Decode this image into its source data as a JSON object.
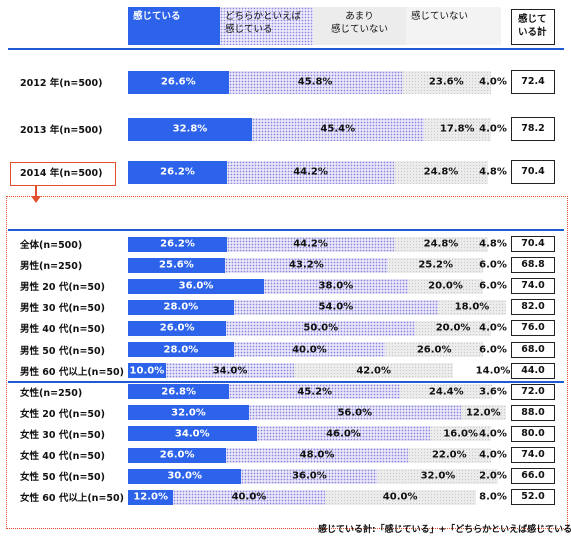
{
  "legend": {
    "l1": "感じている",
    "l2a": "どちらかといえば",
    "l2b": "感じている",
    "l3a": "あまり",
    "l3b": "感じていない",
    "l4": "感じていない",
    "l5a": "感じて",
    "l5b": "いる計"
  },
  "footnote": "感じている計:「感じている」+「どちらかといえば感じている」",
  "chart_data": {
    "type": "bar",
    "orientation": "horizontal-stacked-100",
    "series": [
      {
        "name": "感じている",
        "color": "#2d63ea"
      },
      {
        "name": "どちらかといえば感じている",
        "color": "#8a87de"
      },
      {
        "name": "あまり感じていない",
        "color": "#c9c9c9"
      },
      {
        "name": "感じていない",
        "color": "#ffffff"
      }
    ],
    "summary_column": "感じている計",
    "rows": [
      {
        "label": "2012 年(n=500)",
        "values": [
          26.6,
          45.8,
          23.6,
          4.0
        ],
        "labels": [
          "26.6%",
          "45.8%",
          "23.6%",
          "4.0%"
        ],
        "total": "72.4",
        "group": "year"
      },
      {
        "label": "2013 年(n=500)",
        "values": [
          32.8,
          45.4,
          17.8,
          4.0
        ],
        "labels": [
          "32.8%",
          "45.4%",
          "17.8%",
          "4.0%"
        ],
        "total": "78.2",
        "group": "year"
      },
      {
        "label": "2014 年(n=500)",
        "values": [
          26.2,
          44.2,
          24.8,
          4.8
        ],
        "labels": [
          "26.2%",
          "44.2%",
          "24.8%",
          "4.8%"
        ],
        "total": "70.4",
        "group": "year"
      },
      {
        "label": "全体(n=500)",
        "values": [
          26.2,
          44.2,
          24.8,
          4.8
        ],
        "labels": [
          "26.2%",
          "44.2%",
          "24.8%",
          "4.8%"
        ],
        "total": "70.4",
        "group": "detail"
      },
      {
        "label": "男性(n=250)",
        "values": [
          25.6,
          43.2,
          25.2,
          6.0
        ],
        "labels": [
          "25.6%",
          "43.2%",
          "25.2%",
          "6.0%"
        ],
        "total": "68.8",
        "group": "detail"
      },
      {
        "label": "男性 20 代(n=50)",
        "values": [
          36.0,
          38.0,
          20.0,
          6.0
        ],
        "labels": [
          "36.0%",
          "38.0%",
          "20.0%",
          "6.0%"
        ],
        "total": "74.0",
        "group": "detail"
      },
      {
        "label": "男性 30 代(n=50)",
        "values": [
          28.0,
          54.0,
          18.0,
          0
        ],
        "labels": [
          "28.0%",
          "54.0%",
          "18.0%",
          ""
        ],
        "total": "82.0",
        "group": "detail"
      },
      {
        "label": "男性 40 代(n=50)",
        "values": [
          26.0,
          50.0,
          20.0,
          4.0
        ],
        "labels": [
          "26.0%",
          "50.0%",
          "20.0%",
          "4.0%"
        ],
        "total": "76.0",
        "group": "detail"
      },
      {
        "label": "男性 50 代(n=50)",
        "values": [
          28.0,
          40.0,
          26.0,
          6.0
        ],
        "labels": [
          "28.0%",
          "40.0%",
          "26.0%",
          "6.0%"
        ],
        "total": "68.0",
        "group": "detail"
      },
      {
        "label": "男性 60 代以上(n=50)",
        "values": [
          10.0,
          34.0,
          42.0,
          14.0
        ],
        "labels": [
          "10.0%",
          "34.0%",
          "42.0%",
          "14.0%"
        ],
        "total": "44.0",
        "group": "detail"
      },
      {
        "label": "女性(n=250)",
        "values": [
          26.8,
          45.2,
          24.4,
          3.6
        ],
        "labels": [
          "26.8%",
          "45.2%",
          "24.4%",
          "3.6%"
        ],
        "total": "72.0",
        "group": "detail"
      },
      {
        "label": "女性 20 代(n=50)",
        "values": [
          32.0,
          56.0,
          12.0,
          0
        ],
        "labels": [
          "32.0%",
          "56.0%",
          "12.0%",
          ""
        ],
        "total": "88.0",
        "group": "detail"
      },
      {
        "label": "女性 30 代(n=50)",
        "values": [
          34.0,
          46.0,
          16.0,
          4.0
        ],
        "labels": [
          "34.0%",
          "46.0%",
          "16.0%",
          "4.0%"
        ],
        "total": "80.0",
        "group": "detail"
      },
      {
        "label": "女性 40 代(n=50)",
        "values": [
          26.0,
          48.0,
          22.0,
          4.0
        ],
        "labels": [
          "26.0%",
          "48.0%",
          "22.0%",
          "4.0%"
        ],
        "total": "74.0",
        "group": "detail"
      },
      {
        "label": "女性 50 代(n=50)",
        "values": [
          30.0,
          36.0,
          32.0,
          2.0
        ],
        "labels": [
          "30.0%",
          "36.0%",
          "32.0%",
          "2.0%"
        ],
        "total": "66.0",
        "group": "detail"
      },
      {
        "label": "女性 60 代以上(n=50)",
        "values": [
          12.0,
          40.0,
          40.0,
          8.0
        ],
        "labels": [
          "12.0%",
          "40.0%",
          "40.0%",
          "8.0%"
        ],
        "total": "52.0",
        "group": "detail"
      }
    ]
  }
}
